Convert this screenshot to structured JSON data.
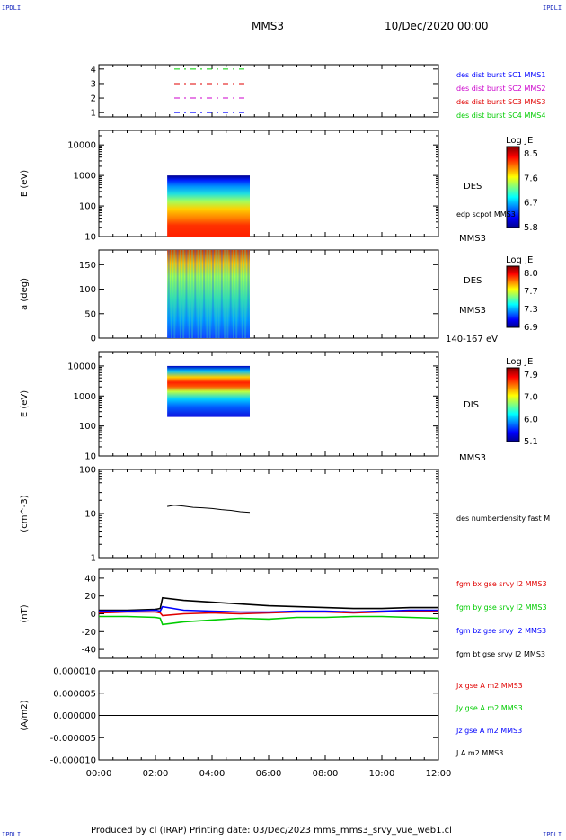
{
  "header": {
    "corner_tl": "IPDLI",
    "corner_tr": "IPDLI",
    "corner_bl": "IPDLI",
    "corner_br": "IPDLI",
    "spacecraft": "MMS3",
    "datetime": "10/Dec/2020 00:00"
  },
  "footer": {
    "text": "Produced by cl (IRAP)   Printing date: 03/Dec/2023   mms_mms3_srvy_vue_web1.cl"
  },
  "colors": {
    "sc1": "#0000ff",
    "sc2": "#cc00cc",
    "sc3": "#e00000",
    "sc4": "#00cc00",
    "black": "#000000"
  },
  "chart_data": [
    {
      "type": "line",
      "ylim": [
        0.7,
        4.3
      ],
      "yticks": [
        "4",
        "3",
        "2",
        "1"
      ],
      "legend": [
        {
          "label": "des dist burst SC1 MMS1",
          "color": "#0000ff"
        },
        {
          "label": "des dist burst SC2 MMS2",
          "color": "#cc00cc"
        },
        {
          "label": "des dist burst SC3 MMS3",
          "color": "#e00000"
        },
        {
          "label": "des dist burst SC4 MMS4",
          "color": "#00cc00"
        }
      ],
      "series": [
        {
          "level": 4,
          "color": "#00cc00",
          "x": [
            "02:40",
            "05:15"
          ]
        },
        {
          "level": 3,
          "color": "#e00000",
          "x": [
            "02:40",
            "05:15"
          ]
        },
        {
          "level": 2,
          "color": "#cc00cc",
          "x": [
            "02:40",
            "05:15"
          ]
        },
        {
          "level": 1,
          "color": "#0000ff",
          "x": [
            "02:40",
            "05:15"
          ]
        }
      ]
    },
    {
      "type": "heatmap",
      "ylabel": "E (eV)",
      "yscale": "log",
      "ylim": [
        10,
        30000
      ],
      "yticks": [
        "10000",
        "1000",
        "100",
        "10"
      ],
      "x_range": [
        "02:25",
        "05:20"
      ],
      "y_data_range": [
        10,
        1000
      ],
      "labels": [
        "DES",
        "edp scpot MMS3",
        "MMS3"
      ],
      "colorbar": {
        "title": "Log JE",
        "ticks": [
          "8.5",
          "7.6",
          "6.7",
          "5.8"
        ],
        "min": 5.8,
        "max": 8.5
      }
    },
    {
      "type": "heatmap",
      "ylabel": "a (deg)",
      "ylim": [
        0,
        180
      ],
      "yticks": [
        "150",
        "100",
        "50",
        "0"
      ],
      "x_range": [
        "02:25",
        "05:20"
      ],
      "labels": [
        "DES",
        "MMS3",
        "140-167 eV"
      ],
      "colorbar": {
        "title": "Log JE",
        "ticks": [
          "8.0",
          "7.7",
          "7.3",
          "6.9"
        ],
        "min": 6.9,
        "max": 8.0
      }
    },
    {
      "type": "heatmap",
      "ylabel": "E (eV)",
      "yscale": "log",
      "ylim": [
        10,
        30000
      ],
      "yticks": [
        "10000",
        "1000",
        "100",
        "10"
      ],
      "x_range": [
        "02:25",
        "05:20"
      ],
      "y_data_range": [
        200,
        10000
      ],
      "labels": [
        "DIS",
        "MMS3"
      ],
      "colorbar": {
        "title": "Log JE",
        "ticks": [
          "7.9",
          "7.0",
          "6.0",
          "5.1"
        ],
        "min": 5.1,
        "max": 7.9
      }
    },
    {
      "type": "line",
      "ylabel": "(cm^-3)",
      "yscale": "log",
      "ylim": [
        1,
        100
      ],
      "yticks": [
        "100",
        "10",
        "1"
      ],
      "legend": [
        {
          "label": "des numberdensity fast M",
          "color": "#000000"
        }
      ],
      "series": [
        {
          "name": "des numberdensity fast M",
          "color": "#000000",
          "x": [
            "02:25",
            "02:40",
            "03:00",
            "03:20",
            "03:40",
            "04:00",
            "04:20",
            "04:40",
            "05:00",
            "05:20"
          ],
          "y": [
            14.5,
            15.5,
            14.8,
            13.8,
            13.5,
            13.0,
            12.3,
            11.8,
            11.0,
            10.6
          ]
        }
      ]
    },
    {
      "type": "line",
      "ylabel": "(nT)",
      "ylim": [
        -50,
        50
      ],
      "yticks": [
        "40",
        "20",
        "0",
        "-20",
        "-40"
      ],
      "legend": [
        {
          "label": "fgm bx gse srvy l2 MMS3",
          "color": "#e00000"
        },
        {
          "label": "fgm by gse srvy l2 MMS3",
          "color": "#00cc00"
        },
        {
          "label": "fgm bz gse srvy l2 MMS3",
          "color": "#0000ff"
        },
        {
          "label": "fgm bt gse srvy l2 MMS3",
          "color": "#000000"
        }
      ],
      "series": [
        {
          "name": "fgm bt gse srvy l2 MMS3",
          "color": "#000000",
          "x": [
            "00:00",
            "01:00",
            "02:00",
            "02:10",
            "02:15",
            "03:00",
            "04:00",
            "05:00",
            "06:00",
            "07:00",
            "08:00",
            "09:00",
            "10:00",
            "11:00",
            "12:00"
          ],
          "y": [
            4,
            4,
            5,
            6,
            18,
            15,
            13,
            11,
            9,
            8,
            7,
            6,
            6,
            7,
            7
          ]
        },
        {
          "name": "fgm bx gse srvy l2 MMS3",
          "color": "#e00000",
          "x": [
            "00:00",
            "01:00",
            "02:00",
            "02:10",
            "02:15",
            "03:00",
            "04:00",
            "05:00",
            "06:00",
            "07:00",
            "08:00",
            "09:00",
            "10:00",
            "11:00",
            "12:00"
          ],
          "y": [
            1,
            2,
            2,
            1,
            -2,
            0,
            1,
            0,
            1,
            2,
            2,
            1,
            2,
            3,
            3
          ]
        },
        {
          "name": "fgm bz gse srvy l2 MMS3",
          "color": "#0000ff",
          "x": [
            "00:00",
            "01:00",
            "02:00",
            "02:10",
            "02:15",
            "03:00",
            "04:00",
            "05:00",
            "06:00",
            "07:00",
            "08:00",
            "09:00",
            "10:00",
            "11:00",
            "12:00"
          ],
          "y": [
            3,
            3,
            4,
            3,
            8,
            4,
            3,
            2,
            2,
            3,
            3,
            2,
            3,
            4,
            4
          ]
        },
        {
          "name": "fgm by gse srvy l2 MMS3",
          "color": "#00cc00",
          "x": [
            "00:00",
            "01:00",
            "02:00",
            "02:10",
            "02:15",
            "03:00",
            "04:00",
            "05:00",
            "06:00",
            "07:00",
            "08:00",
            "09:00",
            "10:00",
            "11:00",
            "12:00"
          ],
          "y": [
            -3,
            -3,
            -4,
            -5,
            -12,
            -9,
            -7,
            -5,
            -6,
            -4,
            -4,
            -3,
            -3,
            -4,
            -5
          ]
        }
      ]
    },
    {
      "type": "line",
      "ylabel": "(A/m2)",
      "ylim": [
        -1e-05,
        1e-05
      ],
      "yticks": [
        "0.000010",
        "0.000005",
        "0.000000",
        "-0.000005",
        "-0.000010"
      ],
      "xticks": [
        "00:00",
        "02:00",
        "04:00",
        "06:00",
        "08:00",
        "10:00",
        "12:00"
      ],
      "xlim": [
        "00:00",
        "12:00"
      ],
      "legend": [
        {
          "label": "Jx gse A m2 MMS3",
          "color": "#e00000"
        },
        {
          "label": "Jy gse A m2 MMS3",
          "color": "#00cc00"
        },
        {
          "label": "Jz gse A m2 MMS3",
          "color": "#0000ff"
        },
        {
          "label": "J A m2 MMS3",
          "color": "#000000"
        }
      ],
      "series": [
        {
          "name": "J A m2 MMS3",
          "color": "#000000",
          "x": [
            "00:00",
            "12:00"
          ],
          "y": [
            0,
            0
          ]
        }
      ]
    }
  ]
}
